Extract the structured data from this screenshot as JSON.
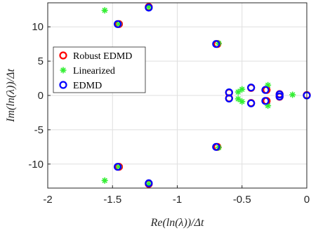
{
  "chart_data": {
    "type": "scatter",
    "xlabel": "Re(ln(λ))/Δt",
    "ylabel": "Im(ln(λ))/Δt",
    "xlim": [
      -2,
      0
    ],
    "ylim": [
      -13.5,
      13.5
    ],
    "xticks": [
      -2,
      -1.5,
      -1,
      -0.5,
      0
    ],
    "xtick_labels": [
      "-2",
      "-1.5",
      "-1",
      "-0.5",
      "0"
    ],
    "yticks": [
      -10,
      -5,
      0,
      5,
      10
    ],
    "ytick_labels": [
      "-10",
      "-5",
      "0",
      "5",
      "10"
    ],
    "grid": true,
    "legend_position": "left",
    "series": [
      {
        "name": "Robust EDMD",
        "marker": "circle",
        "color": "#ff0000",
        "points": [
          [
            -1.22,
            12.9
          ],
          [
            -1.45,
            10.4
          ],
          [
            -0.69,
            7.5
          ],
          [
            -0.6,
            0.4
          ],
          [
            -0.6,
            -0.4
          ],
          [
            -0.43,
            1.1
          ],
          [
            -0.43,
            -1.1
          ],
          [
            -0.31,
            0.8
          ],
          [
            -0.31,
            -0.8
          ],
          [
            -0.21,
            0.2
          ],
          [
            -0.21,
            -0.2
          ],
          [
            0.0,
            0.05
          ],
          [
            -0.69,
            -7.5
          ],
          [
            -1.45,
            -10.4
          ],
          [
            -1.22,
            -12.9
          ]
        ]
      },
      {
        "name": "Linearized",
        "marker": "asterisk",
        "color": "#33ee33",
        "points": [
          [
            -1.56,
            12.4
          ],
          [
            -1.45,
            10.4
          ],
          [
            -1.22,
            12.9
          ],
          [
            -0.68,
            7.6
          ],
          [
            -0.53,
            0.5
          ],
          [
            -0.53,
            -0.5
          ],
          [
            -0.5,
            0.9
          ],
          [
            -0.5,
            -0.9
          ],
          [
            -0.3,
            1.5
          ],
          [
            -0.3,
            -1.5
          ],
          [
            -0.11,
            0.1
          ],
          [
            -0.68,
            -7.6
          ],
          [
            -1.56,
            -12.4
          ],
          [
            -1.45,
            -10.4
          ],
          [
            -1.22,
            -12.9
          ]
        ]
      },
      {
        "name": "EDMD",
        "marker": "circle",
        "color": "#0000ff",
        "points": [
          [
            -1.22,
            12.8
          ],
          [
            -1.46,
            10.4
          ],
          [
            -0.7,
            7.5
          ],
          [
            -0.6,
            0.45
          ],
          [
            -0.6,
            -0.45
          ],
          [
            -0.43,
            1.15
          ],
          [
            -0.43,
            -1.15
          ],
          [
            -0.32,
            0.8
          ],
          [
            -0.32,
            -0.8
          ],
          [
            -0.21,
            0.15
          ],
          [
            -0.21,
            -0.15
          ],
          [
            0.0,
            0.0
          ],
          [
            -0.7,
            -7.5
          ],
          [
            -1.46,
            -10.4
          ],
          [
            -1.22,
            -12.8
          ]
        ]
      }
    ]
  }
}
